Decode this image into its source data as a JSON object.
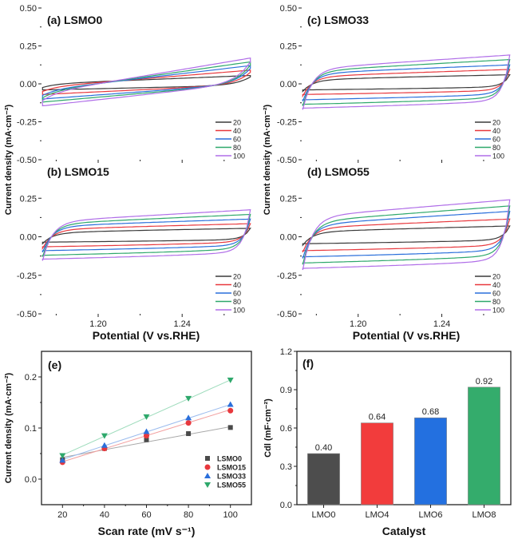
{
  "chart_data": [
    {
      "id": "a",
      "type": "line",
      "panel_label": "(a) LSMO0",
      "xlabel": "Potential (V vs.RHE)",
      "ylabel": "Current density (mA·cm⁻²)",
      "xlim": [
        1.173,
        1.273
      ],
      "ylim": [
        -0.5,
        0.5
      ],
      "xticks": [
        "1.20",
        "1.24"
      ],
      "xtick_values": [
        1.2,
        1.24
      ],
      "yticks": [
        "0.50",
        "0.25",
        "0.00",
        "-0.25",
        "-0.50"
      ],
      "ytick_values": [
        0.5,
        0.25,
        0.0,
        -0.25,
        -0.5
      ],
      "legend_position": "bottom-right",
      "shape": "tilted",
      "series": [
        {
          "name": "20",
          "color": "#3a3a3a",
          "anodic": [
            0.0,
            0.055
          ],
          "cathodic": [
            -0.04,
            -0.01
          ]
        },
        {
          "name": "40",
          "color": "#e8383d",
          "anodic": [
            -0.02,
            0.09
          ],
          "cathodic": [
            -0.07,
            -0.005
          ]
        },
        {
          "name": "60",
          "color": "#2a6fdb",
          "anodic": [
            -0.04,
            0.12
          ],
          "cathodic": [
            -0.1,
            0.0
          ]
        },
        {
          "name": "80",
          "color": "#2ea86b",
          "anodic": [
            -0.05,
            0.145
          ],
          "cathodic": [
            -0.12,
            0.0
          ]
        },
        {
          "name": "100",
          "color": "#b06ee8",
          "anodic": [
            -0.06,
            0.17
          ],
          "cathodic": [
            -0.145,
            0.005
          ]
        }
      ]
    },
    {
      "id": "b",
      "type": "line",
      "panel_label": "(b) LSMO15",
      "xlabel": "Potential (V vs.RHE)",
      "ylabel": "Current density (mA·cm⁻²)",
      "xlim": [
        1.173,
        1.273
      ],
      "ylim": [
        -0.5,
        0.5
      ],
      "xticks": [
        "1.20",
        "1.24"
      ],
      "xtick_values": [
        1.2,
        1.24
      ],
      "yticks": [
        "0.25",
        "0.00",
        "-0.25",
        "-0.50"
      ],
      "ytick_values": [
        0.25,
        0.0,
        -0.25,
        -0.5
      ],
      "legend_position": "bottom-right",
      "shape": "rect",
      "series": [
        {
          "name": "20",
          "color": "#3a3a3a",
          "anodic": [
            0.03,
            0.055
          ],
          "cathodic": [
            -0.035,
            -0.01
          ]
        },
        {
          "name": "40",
          "color": "#e8383d",
          "anodic": [
            0.05,
            0.085
          ],
          "cathodic": [
            -0.065,
            -0.02
          ]
        },
        {
          "name": "60",
          "color": "#2a6fdb",
          "anodic": [
            0.07,
            0.115
          ],
          "cathodic": [
            -0.09,
            -0.04
          ]
        },
        {
          "name": "80",
          "color": "#2ea86b",
          "anodic": [
            0.085,
            0.145
          ],
          "cathodic": [
            -0.12,
            -0.06
          ]
        },
        {
          "name": "100",
          "color": "#b06ee8",
          "anodic": [
            0.1,
            0.175
          ],
          "cathodic": [
            -0.145,
            -0.08
          ]
        }
      ]
    },
    {
      "id": "c",
      "type": "line",
      "panel_label": "(c) LSMO33",
      "xlabel": "Potential (V vs.RHE)",
      "ylabel": "Current density (mA·cm⁻²)",
      "xlim": [
        1.173,
        1.273
      ],
      "ylim": [
        -0.5,
        0.5
      ],
      "xticks": [
        "1.20",
        "1.24"
      ],
      "xtick_values": [
        1.2,
        1.24
      ],
      "yticks": [
        "0.50",
        "0.25",
        "0.00",
        "-0.25",
        "-0.50"
      ],
      "ytick_values": [
        0.5,
        0.25,
        0.0,
        -0.25,
        -0.5
      ],
      "legend_position": "bottom-right",
      "shape": "rect",
      "series": [
        {
          "name": "20",
          "color": "#3a3a3a",
          "anodic": [
            0.03,
            0.06
          ],
          "cathodic": [
            -0.04,
            -0.01
          ]
        },
        {
          "name": "40",
          "color": "#e8383d",
          "anodic": [
            0.05,
            0.095
          ],
          "cathodic": [
            -0.07,
            -0.03
          ]
        },
        {
          "name": "60",
          "color": "#2a6fdb",
          "anodic": [
            0.07,
            0.125
          ],
          "cathodic": [
            -0.105,
            -0.05
          ]
        },
        {
          "name": "80",
          "color": "#2ea86b",
          "anodic": [
            0.085,
            0.16
          ],
          "cathodic": [
            -0.135,
            -0.07
          ]
        },
        {
          "name": "100",
          "color": "#b06ee8",
          "anodic": [
            0.1,
            0.19
          ],
          "cathodic": [
            -0.16,
            -0.09
          ]
        }
      ]
    },
    {
      "id": "d",
      "type": "line",
      "panel_label": "(d) LSMO55",
      "xlabel": "Potential (V vs.RHE)",
      "ylabel": "Current density (mA·cm⁻²)",
      "xlim": [
        1.173,
        1.273
      ],
      "ylim": [
        -0.5,
        0.5
      ],
      "xticks": [
        "1.20",
        "1.24"
      ],
      "xtick_values": [
        1.2,
        1.24
      ],
      "yticks": [
        "0.25",
        "0.00",
        "-0.25",
        "-0.50"
      ],
      "ytick_values": [
        0.25,
        0.0,
        -0.25,
        -0.5
      ],
      "legend_position": "bottom-right",
      "shape": "rect",
      "series": [
        {
          "name": "20",
          "color": "#3a3a3a",
          "anodic": [
            0.035,
            0.07
          ],
          "cathodic": [
            -0.045,
            -0.01
          ]
        },
        {
          "name": "40",
          "color": "#e8383d",
          "anodic": [
            0.06,
            0.115
          ],
          "cathodic": [
            -0.09,
            -0.04
          ]
        },
        {
          "name": "60",
          "color": "#2a6fdb",
          "anodic": [
            0.08,
            0.165
          ],
          "cathodic": [
            -0.13,
            -0.07
          ]
        },
        {
          "name": "80",
          "color": "#2ea86b",
          "anodic": [
            0.1,
            0.2
          ],
          "cathodic": [
            -0.17,
            -0.1
          ]
        },
        {
          "name": "100",
          "color": "#b06ee8",
          "anodic": [
            0.13,
            0.24
          ],
          "cathodic": [
            -0.205,
            -0.13
          ]
        }
      ]
    },
    {
      "id": "e",
      "type": "scatter",
      "panel_label": "(e)",
      "xlabel": "Scan rate (mV s⁻¹)",
      "ylabel": "Current density (mA·cm⁻²)",
      "xlim": [
        10,
        110
      ],
      "ylim": [
        -0.05,
        0.25
      ],
      "xticks": [
        "20",
        "40",
        "60",
        "80",
        "100"
      ],
      "xtick_values": [
        20,
        40,
        60,
        80,
        100
      ],
      "yticks": [
        "0.0",
        "0.1",
        "0.2"
      ],
      "ytick_values": [
        0.0,
        0.1,
        0.2
      ],
      "legend_position": "bottom-right",
      "x": [
        20,
        40,
        60,
        80,
        100
      ],
      "series": [
        {
          "name": "LSMO0",
          "color": "#4a4a4a",
          "marker": "square",
          "values": [
            0.038,
            0.06,
            0.077,
            0.089,
            0.101
          ],
          "fit": [
            0.0425,
            0.1025
          ]
        },
        {
          "name": "LSMO15",
          "color": "#e8383d",
          "marker": "circle",
          "values": [
            0.033,
            0.06,
            0.085,
            0.11,
            0.134
          ],
          "fit": [
            0.034,
            0.136
          ]
        },
        {
          "name": "LSMO33",
          "color": "#2a6fdb",
          "marker": "triangle-up",
          "values": [
            0.037,
            0.066,
            0.093,
            0.12,
            0.146
          ],
          "fit": [
            0.0385,
            0.146
          ]
        },
        {
          "name": "LSMO55",
          "color": "#2ea86b",
          "marker": "triangle-down",
          "values": [
            0.046,
            0.085,
            0.122,
            0.158,
            0.194
          ],
          "fit": [
            0.047,
            0.194
          ]
        }
      ]
    },
    {
      "id": "f",
      "type": "bar",
      "panel_label": "(f)",
      "xlabel": "Catalyst",
      "ylabel": "Cdl (mF·cm⁻²)",
      "ylim": [
        0,
        1.2
      ],
      "yticks": [
        "0.0",
        "0.3",
        "0.6",
        "0.9",
        "1.2"
      ],
      "ytick_values": [
        0.0,
        0.3,
        0.6,
        0.9,
        1.2
      ],
      "categories": [
        "LMO0",
        "LMO4",
        "LMO6",
        "LMO8"
      ],
      "values": [
        0.4,
        0.64,
        0.68,
        0.92
      ],
      "value_labels": [
        "0.40",
        "0.64",
        "0.68",
        "0.92"
      ],
      "colors": [
        "#4d4d4d",
        "#f23c3c",
        "#2370e0",
        "#34ac6c"
      ]
    }
  ],
  "shared": {
    "potential_xlabel": "Potential (V vs.RHE)",
    "cv_ylabel": "Current density (mA·cm⁻²)"
  }
}
